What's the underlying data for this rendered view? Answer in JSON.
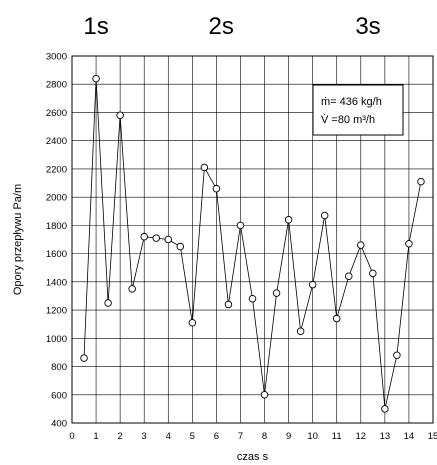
{
  "chart_data": {
    "type": "line",
    "section_labels": [
      {
        "text": "1s",
        "x": 1.0
      },
      {
        "text": "2s",
        "x": 6.2
      },
      {
        "text": "3s",
        "x": 12.3
      }
    ],
    "xlabel": "czas s",
    "ylabel": "Opory przepływu Pa/m",
    "xlim": [
      0,
      15
    ],
    "ylim": [
      400,
      3000
    ],
    "xticks": [
      0,
      1,
      2,
      3,
      4,
      5,
      6,
      7,
      8,
      9,
      10,
      11,
      12,
      13,
      14,
      15
    ],
    "yticks": [
      400,
      600,
      800,
      1000,
      1200,
      1400,
      1600,
      1800,
      2000,
      2200,
      2400,
      2600,
      2800,
      3000
    ],
    "grid": true,
    "legend_lines": [
      "ṁ= 436 kg/h",
      "V̇ =80 m³/h"
    ],
    "legend_position": "top-right",
    "series": [
      {
        "x": [
          0.5,
          1.0,
          1.5,
          2.0,
          2.5,
          3.0,
          3.5,
          4.0,
          4.5,
          5.0,
          5.5,
          6.0,
          6.5,
          7.0,
          7.5,
          8.0,
          8.5,
          9.0,
          9.5,
          10.0,
          10.5,
          11.0,
          11.5,
          12.0,
          12.5,
          13.0,
          13.5,
          14.0,
          14.5
        ],
        "values": [
          860,
          2840,
          1250,
          2580,
          1350,
          1720,
          1710,
          1700,
          1650,
          1110,
          2210,
          2060,
          1240,
          1800,
          1280,
          600,
          1320,
          1840,
          1050,
          1380,
          1870,
          1140,
          1440,
          1660,
          1460,
          500,
          880,
          1670,
          2110
        ]
      }
    ]
  }
}
